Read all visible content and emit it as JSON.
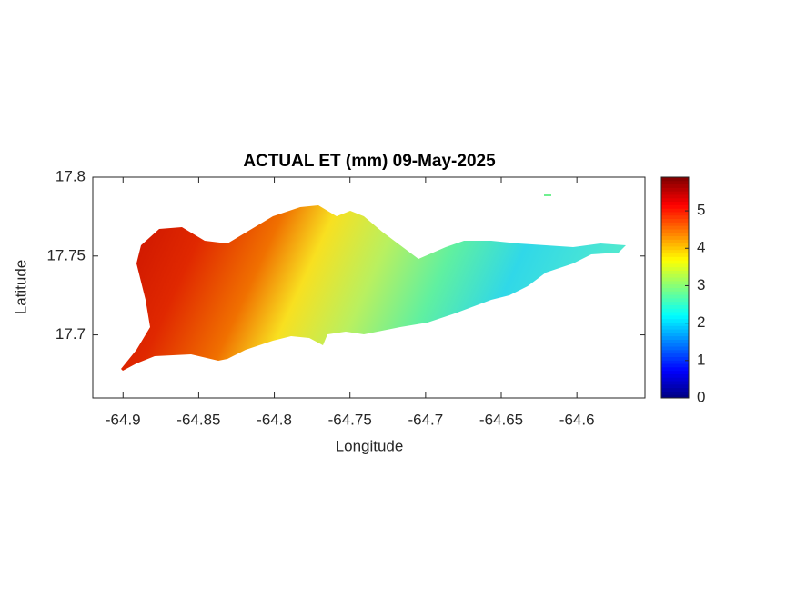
{
  "chart_data": {
    "type": "map",
    "title": "ACTUAL ET (mm) 09-May-2025",
    "xlabel": "Longitude",
    "ylabel": "Latitude",
    "xlim": [
      -64.92,
      -64.555
    ],
    "xticks": [
      -64.9,
      -64.85,
      -64.8,
      -64.75,
      -64.7,
      -64.65,
      -64.6
    ],
    "ylim": [
      17.66,
      17.8
    ],
    "yticks": [
      17.7,
      17.75,
      17.8
    ],
    "colorbar": {
      "colormap": "jet",
      "clim": [
        0,
        5.9
      ],
      "ticks": [
        0,
        1,
        2,
        3,
        4,
        5
      ]
    }
  }
}
